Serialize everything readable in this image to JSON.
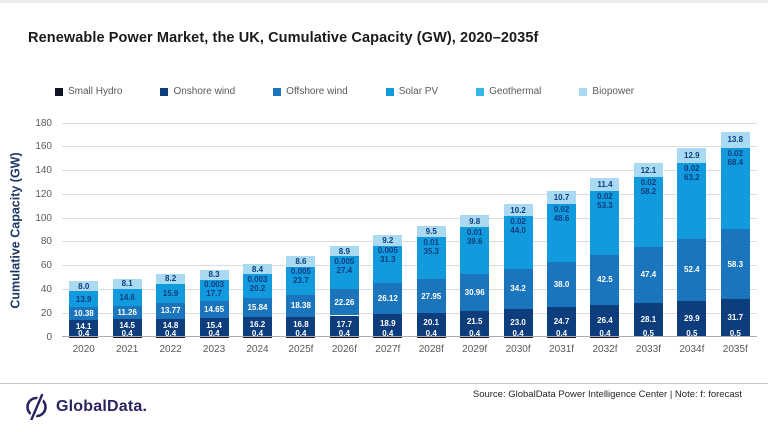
{
  "title": "Renewable Power Market, the UK, Cumulative Capacity (GW), 2020–2035f",
  "y_axis": {
    "label": "Cumulative Capacity (GW)",
    "ticks": [
      0,
      20,
      40,
      60,
      80,
      100,
      120,
      140,
      160,
      180
    ],
    "max": 180
  },
  "chart_data": {
    "type": "bar",
    "stacked": true,
    "legend_position": "top",
    "grid": true,
    "ylim": [
      0,
      180
    ],
    "ylabel": "Cumulative Capacity (GW)",
    "categories": [
      "2020",
      "2021",
      "2022",
      "2023",
      "2024",
      "2025f",
      "2026f",
      "2027f",
      "2028f",
      "2029f",
      "2030f",
      "2031f",
      "2032f",
      "2033f",
      "2034f",
      "2035f"
    ],
    "series": [
      {
        "name": "Small Hydro",
        "key": "small-hydro",
        "color": "#0e1525",
        "label_style": "light",
        "values": [
          0.4,
          0.4,
          0.4,
          0.4,
          0.4,
          0.4,
          0.4,
          0.4,
          0.4,
          0.4,
          0.4,
          0.4,
          0.4,
          0.5,
          0.5,
          0.5
        ],
        "labels": [
          "0.4",
          "0.4",
          "0.4",
          "0.4",
          "0.4",
          "0.4",
          "0.4",
          "0.4",
          "0.4",
          "0.4",
          "0.4",
          "0.4",
          "0.4",
          "0.5",
          "0.5",
          "0.5"
        ]
      },
      {
        "name": "Onshore wind",
        "key": "onshore-wind",
        "color": "#0d3d7c",
        "label_style": "light",
        "values": [
          14.1,
          14.5,
          14.8,
          15.4,
          16.2,
          16.8,
          17.7,
          18.9,
          20.1,
          21.5,
          23.0,
          24.7,
          26.4,
          28.1,
          29.9,
          31.7
        ],
        "labels": [
          "14.1",
          "14.5",
          "14.8",
          "15.4",
          "16.2",
          "16.8",
          "17.7",
          "18.9",
          "20.1",
          "21.5",
          "23.0",
          "24.7",
          "26.4",
          "28.1",
          "29.9",
          "31.7"
        ]
      },
      {
        "name": "Offshore wind",
        "key": "offshore-wind",
        "color": "#1b75bc",
        "label_style": "light",
        "values": [
          10.38,
          11.26,
          13.77,
          14.65,
          15.84,
          18.38,
          22.26,
          26.12,
          27.95,
          30.96,
          34.2,
          38.0,
          42.5,
          47.4,
          52.4,
          58.3
        ],
        "labels": [
          "10.38",
          "11.26",
          "13.77",
          "14.65",
          "15.84",
          "18.38",
          "22.26",
          "26.12",
          "27.95",
          "30.96",
          "34.2",
          "38.0",
          "42.5",
          "47.4",
          "52.4",
          "58.3"
        ]
      },
      {
        "name": "Solar PV",
        "key": "solar-pv",
        "color": "#129ade",
        "label_style": "dark",
        "values": [
          13.9,
          14.6,
          15.9,
          17.7,
          20.2,
          23.7,
          27.4,
          31.3,
          35.3,
          39.6,
          44.0,
          48.6,
          53.3,
          58.2,
          63.2,
          68.4
        ],
        "labels": [
          "13.9",
          "14.6",
          "15.9",
          "17.7",
          "20.2",
          "23.7",
          "27.4",
          "31.3",
          "35.3",
          "39.6",
          "44.0",
          "48.6",
          "53.3",
          "58.2",
          "63.2",
          "68.4"
        ]
      },
      {
        "name": "Geothermal",
        "key": "geothermal",
        "color": "#36b4e9",
        "label_style": "dark",
        "values": [
          0,
          0,
          0,
          0.003,
          0.003,
          0.005,
          0.005,
          0.005,
          0.01,
          0.01,
          0.02,
          0.02,
          0.02,
          0.02,
          0.02,
          0.02
        ],
        "labels": [
          null,
          null,
          null,
          "0.003",
          "0.003",
          "0.005",
          "0.005",
          "0.005",
          "0.01",
          "0.01",
          "0.02",
          "0.02",
          "0.02",
          "0.02",
          "0.02",
          "0.02"
        ]
      },
      {
        "name": "Biopower",
        "key": "biopower",
        "color": "#a9daf2",
        "label_style": "dark",
        "values": [
          8.0,
          8.1,
          8.2,
          8.3,
          8.4,
          8.6,
          8.9,
          9.2,
          9.5,
          9.8,
          10.2,
          10.7,
          11.4,
          12.1,
          12.9,
          13.8
        ],
        "labels": [
          "8.0",
          "8.1",
          "8.2",
          "8.3",
          "8.4",
          "8.6",
          "8.9",
          "9.2",
          "9.5",
          "9.8",
          "10.2",
          "10.7",
          "11.4",
          "12.1",
          "12.9",
          "13.8"
        ]
      }
    ]
  },
  "colors": {
    "label_dark": "#0d3d7c",
    "label_light": "#ffffff",
    "gridline": "#dcdcdc",
    "axis_text": "#595959",
    "y_axis_title": "#1f3864",
    "title_text": "#1a1a1a",
    "brand": "#28245f"
  },
  "footer": {
    "logo_text": "GlobalData.",
    "source_text": "Source: GlobalData Power Intelligence Center | Note: f: forecast"
  }
}
